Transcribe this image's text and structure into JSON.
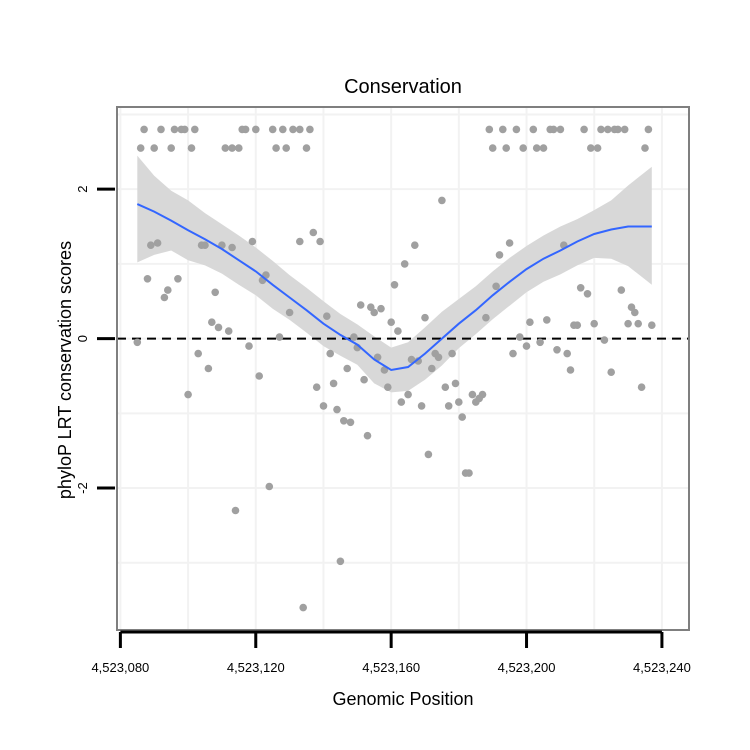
{
  "chart_data": {
    "type": "scatter",
    "title": "Conservation",
    "xlabel": "Genomic Position",
    "ylabel": "phyloP LRT conservation scores",
    "xlim": [
      4523079,
      4523248
    ],
    "ylim": [
      -3.9,
      3.1
    ],
    "x_ticks": [
      4523080,
      4523120,
      4523160,
      4523200,
      4523240
    ],
    "x_tick_labels": [
      "4,523,080",
      "4,523,120",
      "4,523,160",
      "4,523,200",
      "4,523,240"
    ],
    "y_ticks": [
      -2,
      0,
      2
    ],
    "y_tick_labels": [
      "-2",
      "0",
      "2"
    ],
    "reference_line": {
      "y": 0,
      "style": "dashed"
    },
    "points": [
      [
        4523085,
        -0.05
      ],
      [
        4523086,
        2.55
      ],
      [
        4523087,
        2.8
      ],
      [
        4523088,
        0.8
      ],
      [
        4523089,
        1.25
      ],
      [
        4523090,
        2.55
      ],
      [
        4523091,
        1.28
      ],
      [
        4523092,
        2.8
      ],
      [
        4523093,
        0.55
      ],
      [
        4523094,
        0.65
      ],
      [
        4523095,
        2.55
      ],
      [
        4523096,
        2.8
      ],
      [
        4523097,
        0.8
      ],
      [
        4523098,
        2.8
      ],
      [
        4523099,
        2.8
      ],
      [
        4523100,
        -0.75
      ],
      [
        4523101,
        2.55
      ],
      [
        4523102,
        2.8
      ],
      [
        4523103,
        -0.2
      ],
      [
        4523104,
        1.25
      ],
      [
        4523105,
        1.25
      ],
      [
        4523106,
        -0.4
      ],
      [
        4523107,
        0.22
      ],
      [
        4523108,
        0.62
      ],
      [
        4523109,
        0.15
      ],
      [
        4523110,
        1.25
      ],
      [
        4523111,
        2.55
      ],
      [
        4523112,
        0.1
      ],
      [
        4523113,
        2.55
      ],
      [
        4523113,
        1.22
      ],
      [
        4523114,
        -2.3
      ],
      [
        4523115,
        2.55
      ],
      [
        4523116,
        2.8
      ],
      [
        4523117,
        2.8
      ],
      [
        4523118,
        -0.1
      ],
      [
        4523119,
        1.3
      ],
      [
        4523120,
        2.8
      ],
      [
        4523121,
        -0.5
      ],
      [
        4523122,
        0.78
      ],
      [
        4523123,
        0.85
      ],
      [
        4523124,
        -1.98
      ],
      [
        4523125,
        2.8
      ],
      [
        4523126,
        2.55
      ],
      [
        4523127,
        0.02
      ],
      [
        4523128,
        2.8
      ],
      [
        4523129,
        2.55
      ],
      [
        4523130,
        0.35
      ],
      [
        4523131,
        2.8
      ],
      [
        4523133,
        1.3
      ],
      [
        4523133,
        2.8
      ],
      [
        4523134,
        -3.6
      ],
      [
        4523135,
        2.55
      ],
      [
        4523136,
        2.8
      ],
      [
        4523137,
        1.42
      ],
      [
        4523138,
        -0.65
      ],
      [
        4523139,
        1.3
      ],
      [
        4523140,
        -0.9
      ],
      [
        4523141,
        0.3
      ],
      [
        4523142,
        -0.2
      ],
      [
        4523143,
        -0.6
      ],
      [
        4523144,
        -0.95
      ],
      [
        4523145,
        -2.98
      ],
      [
        4523146,
        -1.1
      ],
      [
        4523147,
        -0.4
      ],
      [
        4523148,
        -1.12
      ],
      [
        4523149,
        0.02
      ],
      [
        4523150,
        -0.12
      ],
      [
        4523151,
        0.45
      ],
      [
        4523152,
        -0.55
      ],
      [
        4523153,
        -1.3
      ],
      [
        4523154,
        0.42
      ],
      [
        4523155,
        0.35
      ],
      [
        4523156,
        -0.25
      ],
      [
        4523157,
        0.4
      ],
      [
        4523158,
        -0.42
      ],
      [
        4523159,
        -0.65
      ],
      [
        4523160,
        0.22
      ],
      [
        4523161,
        0.72
      ],
      [
        4523162,
        0.1
      ],
      [
        4523163,
        -0.85
      ],
      [
        4523164,
        1.0
      ],
      [
        4523165,
        -0.75
      ],
      [
        4523166,
        -0.28
      ],
      [
        4523167,
        1.25
      ],
      [
        4523168,
        -0.3
      ],
      [
        4523169,
        -0.9
      ],
      [
        4523170,
        0.28
      ],
      [
        4523171,
        -1.55
      ],
      [
        4523172,
        -0.4
      ],
      [
        4523173,
        -0.2
      ],
      [
        4523174,
        -0.25
      ],
      [
        4523175,
        1.85
      ],
      [
        4523176,
        -0.65
      ],
      [
        4523177,
        -0.9
      ],
      [
        4523178,
        -0.2
      ],
      [
        4523179,
        -0.6
      ],
      [
        4523180,
        -0.85
      ],
      [
        4523181,
        -1.05
      ],
      [
        4523182,
        -1.8
      ],
      [
        4523183,
        -1.8
      ],
      [
        4523184,
        -0.75
      ],
      [
        4523185,
        -0.85
      ],
      [
        4523186,
        -0.8
      ],
      [
        4523187,
        -0.75
      ],
      [
        4523188,
        0.28
      ],
      [
        4523189,
        2.8
      ],
      [
        4523190,
        2.55
      ],
      [
        4523191,
        0.7
      ],
      [
        4523192,
        1.12
      ],
      [
        4523193,
        2.8
      ],
      [
        4523194,
        2.55
      ],
      [
        4523195,
        1.28
      ],
      [
        4523196,
        -0.2
      ],
      [
        4523197,
        2.8
      ],
      [
        4523198,
        0.02
      ],
      [
        4523199,
        2.55
      ],
      [
        4523200,
        -0.1
      ],
      [
        4523201,
        0.22
      ],
      [
        4523202,
        2.8
      ],
      [
        4523203,
        2.55
      ],
      [
        4523204,
        -0.05
      ],
      [
        4523205,
        2.55
      ],
      [
        4523206,
        0.25
      ],
      [
        4523207,
        2.8
      ],
      [
        4523208,
        2.8
      ],
      [
        4523209,
        -0.15
      ],
      [
        4523210,
        2.8
      ],
      [
        4523211,
        1.25
      ],
      [
        4523212,
        -0.2
      ],
      [
        4523213,
        -0.42
      ],
      [
        4523214,
        0.18
      ],
      [
        4523215,
        0.18
      ],
      [
        4523216,
        0.68
      ],
      [
        4523217,
        2.8
      ],
      [
        4523218,
        0.6
      ],
      [
        4523219,
        2.55
      ],
      [
        4523220,
        0.2
      ],
      [
        4523221,
        2.55
      ],
      [
        4523222,
        2.8
      ],
      [
        4523223,
        -0.02
      ],
      [
        4523224,
        2.8
      ],
      [
        4523225,
        -0.45
      ],
      [
        4523226,
        2.8
      ],
      [
        4523227,
        2.8
      ],
      [
        4523228,
        0.65
      ],
      [
        4523229,
        2.8
      ],
      [
        4523230,
        0.2
      ],
      [
        4523231,
        0.42
      ],
      [
        4523232,
        0.35
      ],
      [
        4523233,
        0.2
      ],
      [
        4523234,
        -0.65
      ],
      [
        4523235,
        2.55
      ],
      [
        4523236,
        2.8
      ],
      [
        4523237,
        0.18
      ]
    ],
    "smooth": {
      "method": "loess",
      "x": [
        4523085,
        4523090,
        4523095,
        4523100,
        4523105,
        4523110,
        4523115,
        4523120,
        4523125,
        4523130,
        4523135,
        4523140,
        4523145,
        4523150,
        4523155,
        4523160,
        4523165,
        4523170,
        4523175,
        4523180,
        4523185,
        4523190,
        4523195,
        4523200,
        4523205,
        4523210,
        4523215,
        4523220,
        4523225,
        4523230,
        4523237
      ],
      "y": [
        1.8,
        1.7,
        1.58,
        1.45,
        1.33,
        1.2,
        1.05,
        0.9,
        0.72,
        0.55,
        0.38,
        0.2,
        0.05,
        -0.08,
        -0.28,
        -0.42,
        -0.38,
        -0.2,
        0.0,
        0.2,
        0.38,
        0.58,
        0.76,
        0.93,
        1.07,
        1.18,
        1.3,
        1.4,
        1.46,
        1.5,
        1.5
      ],
      "upper": [
        2.45,
        2.18,
        1.98,
        1.85,
        1.68,
        1.53,
        1.38,
        1.22,
        1.04,
        0.85,
        0.68,
        0.5,
        0.33,
        0.19,
        0.03,
        -0.12,
        -0.05,
        0.15,
        0.36,
        0.53,
        0.7,
        0.9,
        1.08,
        1.24,
        1.38,
        1.5,
        1.6,
        1.72,
        1.85,
        2.05,
        2.3
      ],
      "lower": [
        1.02,
        1.12,
        1.18,
        1.05,
        0.98,
        0.87,
        0.72,
        0.58,
        0.4,
        0.25,
        0.08,
        -0.1,
        -0.23,
        -0.35,
        -0.6,
        -0.72,
        -0.7,
        -0.55,
        -0.36,
        -0.13,
        0.06,
        0.26,
        0.44,
        0.62,
        0.76,
        0.86,
        0.98,
        1.08,
        1.07,
        0.97,
        0.72
      ]
    },
    "colors": {
      "points": "#a0a0a0",
      "smooth_line": "#3366ff",
      "ribbon": "#d6d6d6",
      "panel_border": "#7f7f7f",
      "grid": "#f2f2f2"
    }
  }
}
